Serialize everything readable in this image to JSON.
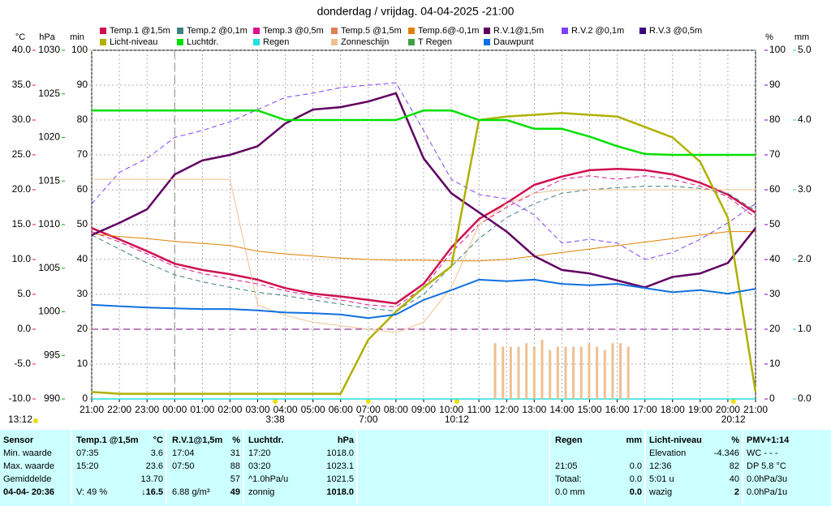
{
  "chart_data": {
    "type": "line",
    "title": "donderdag / vrijdag. 04-04-2025  -21:00",
    "categories": [
      "21:00",
      "22:00",
      "23:00",
      "00:00",
      "01:00",
      "02:00",
      "03:00",
      "04:00",
      "05:00",
      "06:00",
      "07:00",
      "08:00",
      "09:00",
      "10:00",
      "11:00",
      "12:00",
      "13:00",
      "14:00",
      "15:00",
      "16:00",
      "17:00",
      "18:00",
      "19:00",
      "20:00",
      "21:00"
    ],
    "day_boundary": "00:00",
    "grid": true,
    "axes": [
      {
        "unit": "°C",
        "color": "#e0106a",
        "lim": [
          -10,
          40
        ],
        "ticks": [
          {
            "value": 40,
            "label": "40.0"
          },
          {
            "value": 35,
            "label": "35.0"
          },
          {
            "value": 30,
            "label": "30.0"
          },
          {
            "value": 25,
            "label": "25.0"
          },
          {
            "value": 20,
            "label": "20.0"
          },
          {
            "value": 15,
            "label": "15.0"
          },
          {
            "value": 10,
            "label": "10.0"
          },
          {
            "value": 5,
            "label": "5.0"
          },
          {
            "value": 0,
            "label": "0.0"
          },
          {
            "value": -5,
            "label": "-5.0"
          },
          {
            "value": -10,
            "label": "-10.0"
          }
        ]
      },
      {
        "unit": "hPa",
        "color": "#00b000",
        "lim": [
          990,
          1030
        ],
        "ticks": [
          1030,
          1025,
          1020,
          1015,
          1010,
          1005,
          1000,
          995,
          990
        ]
      },
      {
        "unit": "min",
        "color": "#d8b888",
        "lim": [
          0,
          100
        ],
        "ticks": [
          100,
          90,
          80,
          70,
          60,
          50,
          40,
          30,
          20,
          10,
          0
        ]
      },
      {
        "unit": "%",
        "color": "#8000c0",
        "lim": [
          0,
          100
        ],
        "ticks": [
          100,
          90,
          80,
          70,
          60,
          50,
          40,
          30,
          20,
          10,
          0
        ]
      },
      {
        "unit": "mm",
        "color": "#20c8c8",
        "lim": [
          0,
          5
        ],
        "ticks": [
          {
            "value": 5,
            "label": "5.0"
          },
          {
            "value": 4,
            "label": "4.0"
          },
          {
            "value": 3,
            "label": "3.0"
          },
          {
            "value": 2,
            "label": "2.0"
          },
          {
            "value": 1,
            "label": "1.0"
          },
          {
            "value": 0,
            "label": "0.0"
          }
        ]
      }
    ],
    "grid_axis": 2,
    "reference_line": {
      "axis": 0,
      "value": 0,
      "color": "#800080"
    },
    "series": [
      {
        "name": "Temp.1 @1,5m",
        "color": "#d01050",
        "axis": 0,
        "line_width": 2.5,
        "dash": false,
        "values": [
          14.5,
          12.9,
          11.2,
          9.4,
          8.5,
          7.9,
          7.1,
          5.9,
          5.1,
          4.7,
          4.2,
          3.7,
          6.5,
          11.7,
          15.8,
          18.1,
          20.7,
          21.9,
          22.8,
          23.0,
          22.8,
          22.2,
          21.0,
          19.3,
          16.7
        ]
      },
      {
        "name": "Temp.2 @0,1m",
        "color": "#408080",
        "axis": 0,
        "line_width": 1,
        "dash": true,
        "values": [
          13.5,
          11.5,
          9.5,
          7.8,
          6.8,
          6.0,
          5.3,
          4.8,
          4.2,
          3.6,
          3.0,
          2.6,
          5.0,
          9.0,
          13.0,
          16.0,
          18.0,
          19.5,
          20.0,
          20.3,
          20.5,
          20.5,
          20.2,
          19.5,
          17.0
        ]
      },
      {
        "name": "Temp.3 @0,5m",
        "color": "#e01090",
        "axis": 0,
        "line_width": 1,
        "dash": true,
        "values": [
          14.0,
          12.5,
          10.8,
          9.0,
          8.0,
          7.2,
          6.5,
          5.5,
          4.8,
          4.2,
          3.5,
          3.2,
          6.0,
          11.0,
          15.0,
          17.5,
          19.5,
          21.5,
          22.0,
          21.5,
          22.0,
          21.5,
          20.5,
          19.0,
          16.0
        ]
      },
      {
        "name": "Temp.5 @1,5m",
        "color": "#e08050",
        "axis": 0
      },
      {
        "name": "Temp.6@-0,1m",
        "color": "#e08000",
        "axis": 0,
        "line_width": 1,
        "dash": false,
        "values": [
          13.7,
          13.3,
          13.0,
          12.6,
          12.3,
          12.0,
          11.2,
          10.8,
          10.5,
          10.2,
          10.0,
          9.9,
          9.9,
          9.8,
          9.8,
          10.0,
          10.5,
          11.0,
          11.5,
          12.0,
          12.5,
          13.0,
          13.5,
          14.0,
          14.0
        ]
      },
      {
        "name": "R.V.1@1,5m",
        "color": "#600060",
        "axis": 3,
        "line_width": 2.5,
        "dash": false,
        "values": [
          47,
          50.5,
          54.4,
          64.4,
          68.4,
          70,
          72.5,
          79,
          83,
          83.7,
          85.3,
          87.7,
          69,
          59,
          53.5,
          48,
          41,
          37,
          36,
          34,
          32,
          35,
          36,
          39,
          49
        ]
      },
      {
        "name": "R.V.2 @0,1m",
        "color": "#8040ff",
        "axis": 3,
        "line_width": 1,
        "dash": true,
        "values": [
          56,
          65,
          69,
          75,
          77,
          79.5,
          83,
          86.5,
          87.7,
          89.3,
          90,
          90.7,
          77,
          63,
          58.6,
          57.4,
          52.8,
          44.7,
          45.8,
          44.7,
          40,
          42,
          45.8,
          50.5,
          56
        ]
      },
      {
        "name": "R.V.3 @0,5m",
        "color": "#400080",
        "axis": 3
      },
      {
        "name": "Licht-niveau",
        "color": "#b0b000",
        "axis": 3,
        "line_width": 2.5,
        "dash": false,
        "values": [
          2,
          1.5,
          1.5,
          1.5,
          1.5,
          1.5,
          1.5,
          1.5,
          1.5,
          1.5,
          17,
          25,
          32,
          38,
          80,
          81,
          81.5,
          82,
          81.5,
          81,
          78,
          75,
          68,
          52,
          2
        ]
      },
      {
        "name": "Luchtdr.",
        "color": "#00e000",
        "axis": 1,
        "line_width": 2.5,
        "dash": false,
        "values": [
          1023.1,
          1023.1,
          1023.1,
          1023.1,
          1023.1,
          1023.1,
          1023.1,
          1022,
          1022,
          1022,
          1022,
          1022,
          1023.1,
          1023.1,
          1022,
          1022,
          1021,
          1021,
          1020.1,
          1019,
          1018.1,
          1018,
          1018,
          1018,
          1018
        ]
      },
      {
        "name": "Regen",
        "color": "#20e0e0",
        "axis": 4,
        "line_width": 1.5,
        "dash": false,
        "values": [
          0,
          0,
          0,
          0,
          0,
          0,
          0,
          0,
          0,
          0,
          0,
          0,
          0,
          0,
          0,
          0,
          0,
          0,
          0,
          0,
          0,
          0,
          0,
          0,
          0
        ]
      },
      {
        "name": "Zonneschijn",
        "color": "#f0c090",
        "axis": 2,
        "line_width": 1,
        "dash": false,
        "values": [
          63,
          63,
          63,
          63,
          63,
          63,
          27,
          24,
          22,
          21,
          20,
          19,
          22,
          32,
          50,
          56,
          59,
          60,
          60,
          60,
          60,
          60,
          60,
          60,
          60
        ],
        "bars": {
          "x": [
            "11:35",
            "11:52",
            "12:09",
            "12:26",
            "12:43",
            "13:00",
            "13:17",
            "13:34",
            "13:51",
            "14:08",
            "14:25",
            "14:42",
            "14:59",
            "15:16",
            "15:33",
            "15:50",
            "16:07",
            "16:24"
          ],
          "values": [
            16,
            15,
            15,
            15,
            16,
            15,
            17,
            14,
            15,
            15,
            15,
            15,
            16,
            15,
            14,
            16,
            16,
            15
          ]
        }
      },
      {
        "name": "T Regen",
        "color": "#40a040",
        "axis": 0
      },
      {
        "name": "Dauwpunt",
        "color": "#1070e0",
        "axis": 0,
        "line_width": 2,
        "dash": false,
        "values": [
          3.5,
          3.3,
          3.1,
          3.0,
          2.9,
          2.9,
          2.7,
          2.4,
          2.3,
          2.1,
          1.6,
          2.1,
          4.2,
          5.6,
          7.1,
          6.9,
          7.1,
          6.5,
          6.3,
          6.5,
          5.9,
          5.3,
          5.6,
          5.1,
          5.8
        ]
      }
    ],
    "events": [
      "3:38",
      "7:00",
      "10:12",
      "20:12"
    ],
    "left_event": "13:12"
  },
  "panel": {
    "columns": [
      {
        "header": [
          "Sensor",
          null
        ],
        "rows": [
          [
            "Min. waarde",
            null
          ],
          [
            "Max. waarde",
            null
          ],
          [
            "Gemiddelde",
            null
          ],
          [
            "04-04- 20:36",
            null
          ]
        ]
      },
      {
        "header": [
          "Temp.1 @1,5m",
          "°C"
        ],
        "rows": [
          [
            "07:35",
            "3.6"
          ],
          [
            "15:20",
            "23.6"
          ],
          [
            null,
            "13.70"
          ],
          [
            "V: 49 %",
            "↓16.5"
          ]
        ]
      },
      {
        "header": [
          "R.V.1@1,5m",
          "%"
        ],
        "rows": [
          [
            "17:04",
            "31"
          ],
          [
            "07:50",
            "88"
          ],
          [
            null,
            "57"
          ],
          [
            "6.88 g/m³",
            "49"
          ]
        ]
      },
      {
        "header": [
          "Luchtdr.",
          "hPa"
        ],
        "rows": [
          [
            "17:20",
            "1018.0"
          ],
          [
            "03:20",
            "1023.1"
          ],
          [
            "^1.0hPa/u",
            "1021.5"
          ],
          [
            "zonnig",
            "1018.0"
          ]
        ]
      },
      {
        "header": [
          "Regen",
          "mm"
        ],
        "rows": [
          [
            null,
            null
          ],
          [
            "21:05",
            "0.0"
          ],
          [
            "Totaal:",
            "0.0"
          ],
          [
            "0.0 mm",
            "0.0"
          ]
        ]
      },
      {
        "header": [
          "Licht-niveau",
          "%"
        ],
        "rows": [
          [
            "Elevation",
            "-4.346"
          ],
          [
            "12:36",
            "82"
          ],
          [
            "5:01 u",
            "40"
          ],
          [
            "wazig",
            "2"
          ]
        ]
      },
      {
        "header": [
          "PMV+1:14",
          null
        ],
        "rows": [
          [
            "WC - - -",
            null
          ],
          [
            "DP 5.8 °C",
            null
          ],
          [
            "0.0hPa/3u",
            null
          ],
          [
            "0.0hPa/1u",
            null
          ]
        ]
      }
    ]
  }
}
